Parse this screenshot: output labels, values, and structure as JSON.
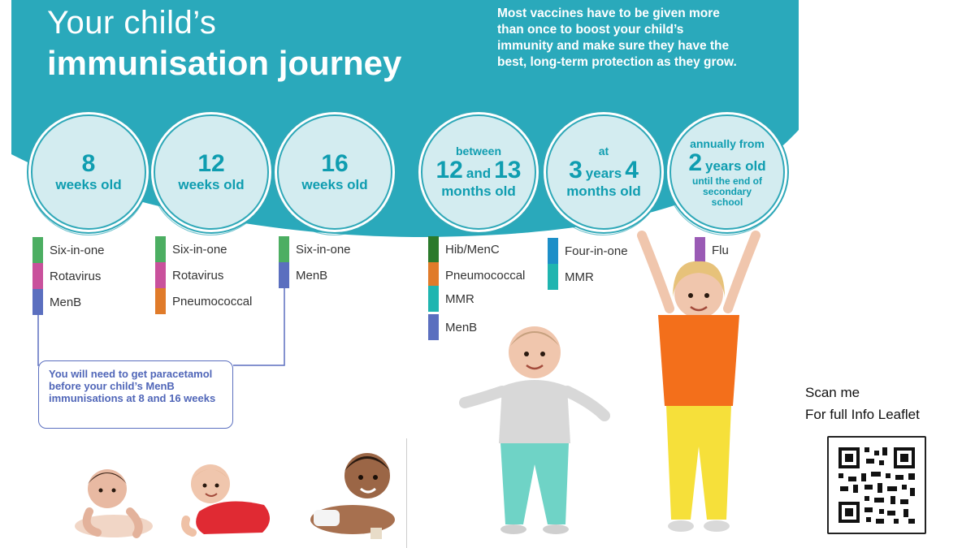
{
  "header": {
    "title_line1": "Your child’s",
    "title_line2": "immunisation journey",
    "intro": "Most vaccines have to be given more than once to boost your child’s immunity and make sure they have the best, long-term protection as they grow."
  },
  "milestones": [
    {
      "number": "8",
      "unit": "weeks old"
    },
    {
      "number": "12",
      "unit": "weeks old"
    },
    {
      "number": "16",
      "unit": "weeks old"
    },
    {
      "pre": "between",
      "num_a": "12",
      "joiner": "and",
      "num_b": "13",
      "unit": "months old"
    },
    {
      "pre": "at",
      "num_a": "3",
      "joiner": "years",
      "num_b": "4",
      "unit": "months old"
    },
    {
      "pre": "annually from",
      "number": "2",
      "number_unit": "years old",
      "post": "until the end of secondary school"
    }
  ],
  "vaccines": {
    "col1": [
      "Six-in-one",
      "Rotavirus",
      "MenB"
    ],
    "col2": [
      "Six-in-one",
      "Rotavirus",
      "Pneumococcal"
    ],
    "col3": [
      "Six-in-one",
      "MenB"
    ],
    "col4": [
      "Hib/MenC",
      "Pneumococcal",
      "MMR",
      "MenB"
    ],
    "col5": [
      "Four-in-one",
      "MMR"
    ],
    "col6": [
      "Flu"
    ]
  },
  "colors": {
    "teal": "#2aa9bb",
    "six_in_one": "#4cae62",
    "rotavirus": "#c9519c",
    "menb": "#5b6fbf",
    "pneumococcal": "#e07b2a",
    "hib_menc": "#2b7a2b",
    "mmr": "#1fb5b0",
    "four_in_one": "#1c8fc8",
    "flu": "#9a5bb5"
  },
  "note": "You will need to get paracetamol before your child’s MenB immunisations at 8 and 16 weeks",
  "qr": {
    "line1": "Scan me",
    "line2": "For full Info Leaflet"
  },
  "icons": [
    "qr-code-icon"
  ]
}
